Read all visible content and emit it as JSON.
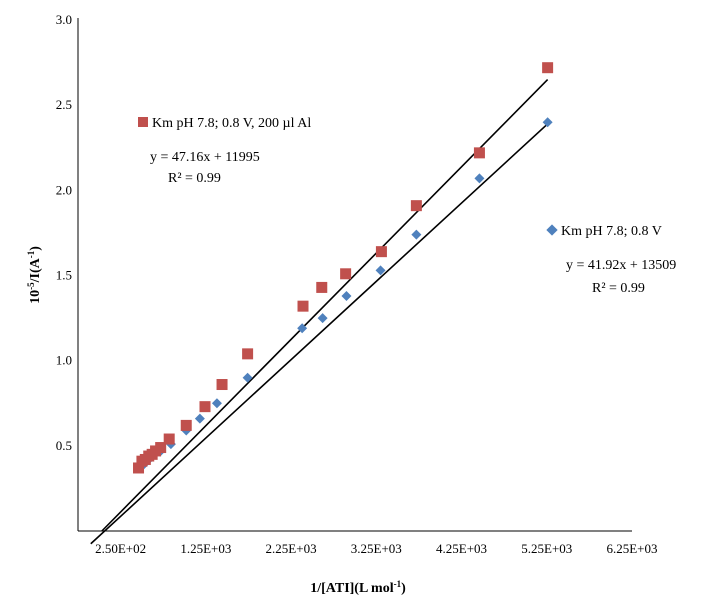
{
  "chart_data": {
    "type": "scatter",
    "xlabel": "1/[ATI](L mol-1)",
    "ylabel": "10-5/I(A-1)",
    "xlim": [
      -250,
      6250
    ],
    "ylim": [
      0,
      3.0
    ],
    "x_ticks": [
      "2.50E+02",
      "1.25E+03",
      "2.25E+03",
      "3.25E+03",
      "4.25E+03",
      "5.25E+03",
      "6.25E+03"
    ],
    "y_ticks": [
      "0.5",
      "1.0",
      "1.5",
      "2.0",
      "2.5",
      "3.0"
    ],
    "grid": false,
    "series": [
      {
        "name": "Km pH 7.8; 0.8 V, 200 µl Al",
        "marker": "square",
        "color": "#c0504d",
        "equation": "y = 47.16x + 11995",
        "r2": "R² = 0.99",
        "x": [
          460,
          500,
          540,
          580,
          620,
          660,
          720,
          820,
          1020,
          1240,
          1440,
          1740,
          2390,
          2610,
          2890,
          3310,
          3720,
          4460,
          5260
        ],
        "y": [
          0.37,
          0.41,
          0.42,
          0.44,
          0.45,
          0.47,
          0.49,
          0.54,
          0.62,
          0.73,
          0.86,
          1.04,
          1.32,
          1.43,
          1.51,
          1.64,
          1.91,
          2.22,
          2.72
        ]
      },
      {
        "name": "Km pH 7.8; 0.8 V",
        "marker": "diamond",
        "color": "#4f81bd",
        "equation": "y = 41.92x + 13509",
        "r2": "R² = 0.99",
        "x": [
          520,
          560,
          600,
          650,
          720,
          840,
          1020,
          1180,
          1380,
          1740,
          2380,
          2620,
          2900,
          3300,
          3720,
          4460,
          5260
        ],
        "y": [
          0.39,
          0.41,
          0.43,
          0.46,
          0.47,
          0.51,
          0.59,
          0.66,
          0.75,
          0.9,
          1.19,
          1.25,
          1.38,
          1.53,
          1.74,
          2.07,
          2.4
        ]
      }
    ],
    "trendlines": [
      {
        "series": 0,
        "x": [
          30,
          5260
        ],
        "y": [
          0.0,
          2.65
        ]
      },
      {
        "series": 1,
        "x": [
          -100,
          5260
        ],
        "y": [
          -0.075,
          2.39
        ]
      }
    ]
  }
}
